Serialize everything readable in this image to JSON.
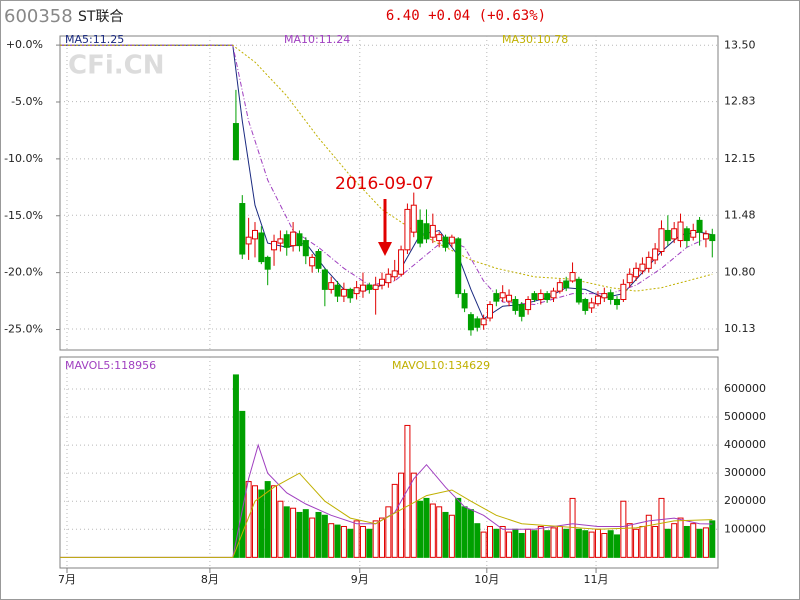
{
  "header": {
    "code": "600358",
    "name": "ST联合",
    "quote": "6.40 +0.04 (+0.63%)",
    "watermark": "CFi.CN",
    "annotation": "2016-09-07"
  },
  "chart_data": [
    {
      "type": "candlestick",
      "x": [
        25,
        26,
        27,
        28,
        29,
        30,
        31,
        32,
        33,
        34,
        35,
        36,
        37,
        38,
        39,
        40,
        41,
        42,
        43,
        44,
        45,
        46,
        47,
        48,
        49,
        50,
        51,
        52,
        53,
        54,
        55,
        56,
        57,
        58,
        59,
        60,
        61,
        62,
        63,
        64,
        65,
        66,
        67,
        68,
        69,
        70,
        71,
        72,
        73,
        74,
        75,
        76,
        77,
        78,
        79,
        80,
        81,
        82,
        83,
        84,
        85,
        86,
        87,
        88,
        89,
        90,
        91,
        92,
        93,
        94,
        95,
        96,
        97,
        98,
        99,
        100
      ],
      "open": [
        12.57,
        11.62,
        11.14,
        11.2,
        11.27,
        10.98,
        11.07,
        11.15,
        11.25,
        11.12,
        11.26,
        11.18,
        10.88,
        11.05,
        10.83,
        10.6,
        10.65,
        10.52,
        10.6,
        10.55,
        10.58,
        10.65,
        10.6,
        10.65,
        10.68,
        10.75,
        10.78,
        11.07,
        11.28,
        11.42,
        11.38,
        11.22,
        11.18,
        11.22,
        11.15,
        11.2,
        10.55,
        10.3,
        10.25,
        10.18,
        10.26,
        10.55,
        10.5,
        10.46,
        10.48,
        10.42,
        10.36,
        10.55,
        10.48,
        10.55,
        10.5,
        10.58,
        10.7,
        10.7,
        10.72,
        10.48,
        10.38,
        10.43,
        10.5,
        10.56,
        10.48,
        10.48,
        10.68,
        10.75,
        10.82,
        10.85,
        10.95,
        11.05,
        11.3,
        11.2,
        11.18,
        11.32,
        11.22,
        11.42,
        11.2,
        11.25
      ],
      "high": [
        12.97,
        11.72,
        11.45,
        11.4,
        11.35,
        11.0,
        11.25,
        11.3,
        11.3,
        11.4,
        11.3,
        11.22,
        11.02,
        11.08,
        10.85,
        10.75,
        10.7,
        10.68,
        10.62,
        10.7,
        10.8,
        10.68,
        10.75,
        10.8,
        10.85,
        10.95,
        11.12,
        11.62,
        11.75,
        11.55,
        11.55,
        11.5,
        11.28,
        11.25,
        11.25,
        11.22,
        10.6,
        10.33,
        10.28,
        10.3,
        10.46,
        10.6,
        10.65,
        10.6,
        10.52,
        10.45,
        10.52,
        10.58,
        10.6,
        10.58,
        10.62,
        10.72,
        10.75,
        10.92,
        10.75,
        10.5,
        10.5,
        10.58,
        10.62,
        10.6,
        10.52,
        10.72,
        10.85,
        10.92,
        10.98,
        11.05,
        11.15,
        11.42,
        11.48,
        11.4,
        11.5,
        11.35,
        11.38,
        11.46,
        11.3,
        11.32
      ],
      "low": [
        12.14,
        10.96,
        10.95,
        10.98,
        10.9,
        10.65,
        10.88,
        11.05,
        11.0,
        11.05,
        11.05,
        10.9,
        10.8,
        10.8,
        10.4,
        10.55,
        10.45,
        10.45,
        10.44,
        10.48,
        10.5,
        10.55,
        10.3,
        10.6,
        10.62,
        10.7,
        10.75,
        11.02,
        11.22,
        11.1,
        11.15,
        11.15,
        11.1,
        11.05,
        11.1,
        10.5,
        10.33,
        10.05,
        10.1,
        10.12,
        10.22,
        10.4,
        10.45,
        10.4,
        10.3,
        10.22,
        10.3,
        10.45,
        10.42,
        10.44,
        10.45,
        10.55,
        10.58,
        10.68,
        10.42,
        10.3,
        10.32,
        10.4,
        10.45,
        10.42,
        10.36,
        10.45,
        10.62,
        10.7,
        10.78,
        10.8,
        10.9,
        11.0,
        11.12,
        11.15,
        11.1,
        11.1,
        11.18,
        11.12,
        11.1,
        10.98
      ],
      "close": [
        12.14,
        11.02,
        11.22,
        11.3,
        10.93,
        10.84,
        11.17,
        11.2,
        11.1,
        11.28,
        11.12,
        11.0,
        10.98,
        10.85,
        10.6,
        10.68,
        10.52,
        10.6,
        10.5,
        10.62,
        10.65,
        10.6,
        10.65,
        10.72,
        10.78,
        10.82,
        11.07,
        11.55,
        11.6,
        11.15,
        11.2,
        11.36,
        11.25,
        11.1,
        11.22,
        10.55,
        10.38,
        10.12,
        10.15,
        10.25,
        10.42,
        10.46,
        10.56,
        10.53,
        10.35,
        10.28,
        10.48,
        10.48,
        10.55,
        10.48,
        10.58,
        10.68,
        10.62,
        10.8,
        10.45,
        10.35,
        10.44,
        10.52,
        10.55,
        10.48,
        10.42,
        10.66,
        10.78,
        10.85,
        10.9,
        10.98,
        11.08,
        11.32,
        11.18,
        11.32,
        11.4,
        11.18,
        11.3,
        11.28,
        11.26,
        11.18
      ],
      "up_color": "#e00000",
      "down_color": "#00a000",
      "xlim": [
        -2.7,
        100.9
      ],
      "xticks": [
        {
          "value": -1.6,
          "label": "7月"
        },
        {
          "value": 20.9,
          "label": "8月"
        },
        {
          "value": 44.5,
          "label": "9月"
        },
        {
          "value": 64.5,
          "label": "10月"
        },
        {
          "value": 81.7,
          "label": "11月"
        }
      ],
      "ylim": [
        9.88,
        13.61
      ],
      "yticks": [
        {
          "value": 13.5,
          "label": "13.50"
        },
        12.83,
        12.15,
        11.48,
        {
          "value": 10.8,
          "label": "10.80"
        },
        10.13
      ],
      "y2lim": [
        -26.8,
        0.8
      ],
      "y2ticks": [
        {
          "value": 0,
          "label": "+0.0%"
        },
        {
          "value": -5,
          "label": "-5.0%"
        },
        {
          "value": -10,
          "label": "-10.0%"
        },
        {
          "value": -15,
          "label": "-15.0%"
        },
        {
          "value": -20,
          "label": "-20.0%"
        },
        {
          "value": -25,
          "label": "-25.0%"
        }
      ],
      "grid": true,
      "series": [
        {
          "name": "MA5:11.25",
          "color": "#1a2a80",
          "dash": "",
          "x": [
            -2.7,
            24.5,
            26,
            28,
            30,
            33,
            36,
            39,
            42,
            45,
            48,
            51,
            54,
            57,
            60,
            62,
            64,
            67,
            70,
            74,
            77,
            80,
            83,
            86,
            89,
            92,
            95,
            98,
            100
          ],
          "values": [
            13.5,
            13.5,
            12.6,
            11.6,
            11.15,
            11.1,
            11.15,
            10.85,
            10.6,
            10.58,
            10.65,
            10.85,
            11.25,
            11.3,
            11.0,
            10.6,
            10.25,
            10.4,
            10.42,
            10.5,
            10.62,
            10.6,
            10.5,
            10.55,
            10.8,
            11.05,
            11.25,
            11.28,
            11.25
          ]
        },
        {
          "name": "MA10:11.24",
          "color": "#a040c0",
          "dash": "5,2,1,2",
          "x": [
            -2.7,
            24.5,
            27,
            30,
            34,
            38,
            42,
            46,
            50,
            54,
            58,
            61,
            64,
            67,
            72,
            78,
            84,
            88,
            92,
            96,
            100
          ],
          "values": [
            13.5,
            13.5,
            12.6,
            11.9,
            11.3,
            11.1,
            10.85,
            10.65,
            10.7,
            10.95,
            11.2,
            11.1,
            10.7,
            10.45,
            10.42,
            10.55,
            10.55,
            10.65,
            10.85,
            11.1,
            11.24
          ]
        },
        {
          "name": "MA30:10.78",
          "color": "#c0b000",
          "dash": "2,2",
          "x": [
            -2.7,
            24.5,
            28,
            33,
            38,
            43,
            48,
            53,
            58,
            62,
            66,
            72,
            78,
            84,
            88,
            92,
            96,
            100
          ],
          "values": [
            13.5,
            13.5,
            13.3,
            12.9,
            12.4,
            11.95,
            11.55,
            11.3,
            11.1,
            10.95,
            10.85,
            10.75,
            10.72,
            10.62,
            10.58,
            10.62,
            10.7,
            10.78
          ]
        }
      ]
    },
    {
      "type": "bar",
      "x": [
        25,
        26,
        27,
        28,
        29,
        30,
        31,
        32,
        33,
        34,
        35,
        36,
        37,
        38,
        39,
        40,
        41,
        42,
        43,
        44,
        45,
        46,
        47,
        48,
        49,
        50,
        51,
        52,
        53,
        54,
        55,
        56,
        57,
        58,
        59,
        60,
        61,
        62,
        63,
        64,
        65,
        66,
        67,
        68,
        69,
        70,
        71,
        72,
        73,
        74,
        75,
        76,
        77,
        78,
        79,
        80,
        81,
        82,
        83,
        84,
        85,
        86,
        87,
        88,
        89,
        90,
        91,
        92,
        93,
        94,
        95,
        96,
        97,
        98,
        99,
        100
      ],
      "values": [
        650000,
        520000,
        270000,
        255000,
        240000,
        270000,
        255000,
        200000,
        180000,
        175000,
        160000,
        170000,
        140000,
        160000,
        150000,
        120000,
        115000,
        110000,
        100000,
        130000,
        110000,
        100000,
        130000,
        140000,
        180000,
        260000,
        300000,
        470000,
        300000,
        200000,
        210000,
        190000,
        180000,
        160000,
        150000,
        210000,
        180000,
        170000,
        120000,
        90000,
        110000,
        100000,
        110000,
        90000,
        100000,
        85000,
        100000,
        95000,
        110000,
        95000,
        105000,
        110000,
        100000,
        210000,
        100000,
        95000,
        90000,
        100000,
        85000,
        95000,
        80000,
        200000,
        120000,
        100000,
        110000,
        150000,
        110000,
        210000,
        100000,
        120000,
        140000,
        110000,
        120000,
        100000,
        105000,
        130000
      ],
      "ylim": [
        -37900,
        713800
      ],
      "yticks": [
        100000,
        200000,
        300000,
        400000,
        500000,
        600000
      ],
      "series": [
        {
          "name": "MAVOL5:118956",
          "color": "#a040c0",
          "x": [
            -2.7,
            24.5,
            27,
            28.5,
            30,
            33,
            36,
            40,
            44,
            47,
            50,
            53,
            55,
            58,
            61,
            64,
            67,
            72,
            78,
            82,
            86,
            90,
            94,
            98,
            100
          ],
          "values": [
            0,
            0,
            280000,
            400000,
            300000,
            230000,
            190000,
            150000,
            120000,
            120000,
            160000,
            280000,
            330000,
            250000,
            180000,
            150000,
            100000,
            100000,
            120000,
            110000,
            110000,
            130000,
            140000,
            120000,
            118956
          ]
        },
        {
          "name": "MAVOL10:134629",
          "color": "#c0b000",
          "x": [
            -2.7,
            24.5,
            28,
            31,
            35,
            39,
            43,
            47,
            51,
            55,
            59,
            62,
            66,
            70,
            76,
            82,
            88,
            94,
            100
          ],
          "values": [
            0,
            0,
            200000,
            250000,
            300000,
            200000,
            140000,
            120000,
            170000,
            220000,
            240000,
            200000,
            150000,
            120000,
            110000,
            100000,
            105000,
            130000,
            134629
          ]
        }
      ]
    }
  ]
}
